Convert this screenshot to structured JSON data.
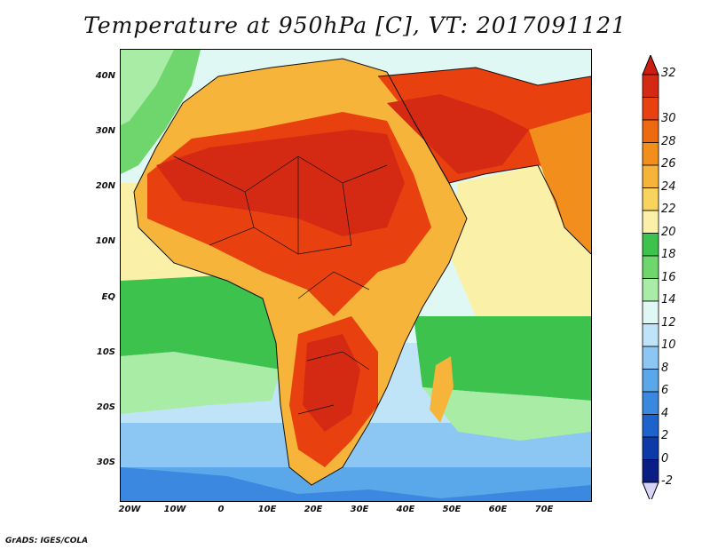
{
  "title": "Temperature at 950hPa [C], VT: 2017091121",
  "credit": "GrADS: IGES/COLA",
  "map": {
    "lat_labels": [
      "40N",
      "30N",
      "20N",
      "10N",
      "EQ",
      "10S",
      "20S",
      "30S"
    ],
    "lon_labels": [
      "20W",
      "10W",
      "0",
      "10E",
      "20E",
      "30E",
      "40E",
      "50E",
      "60E",
      "70E"
    ]
  },
  "colorbar": {
    "levels": [
      "32",
      "30",
      "28",
      "26",
      "24",
      "22",
      "20",
      "18",
      "16",
      "14",
      "12",
      "10",
      "8",
      "6",
      "4",
      "2",
      "0",
      "-2"
    ],
    "colors": [
      "#d42a14",
      "#e8400f",
      "#ee6a10",
      "#f28e1c",
      "#f6b43a",
      "#f8d35e",
      "#fbf0a8",
      "#3ec24e",
      "#6fd66d",
      "#a8eca5",
      "#e0f8f4",
      "#bfe4f8",
      "#8cc6f2",
      "#5aa8ea",
      "#3a88e0",
      "#1e62cc",
      "#0c3aa8",
      "#0a1e86"
    ],
    "top_arrow_color": "#cc1e10",
    "bottom_arrow_color": "#d8d4f6"
  }
}
